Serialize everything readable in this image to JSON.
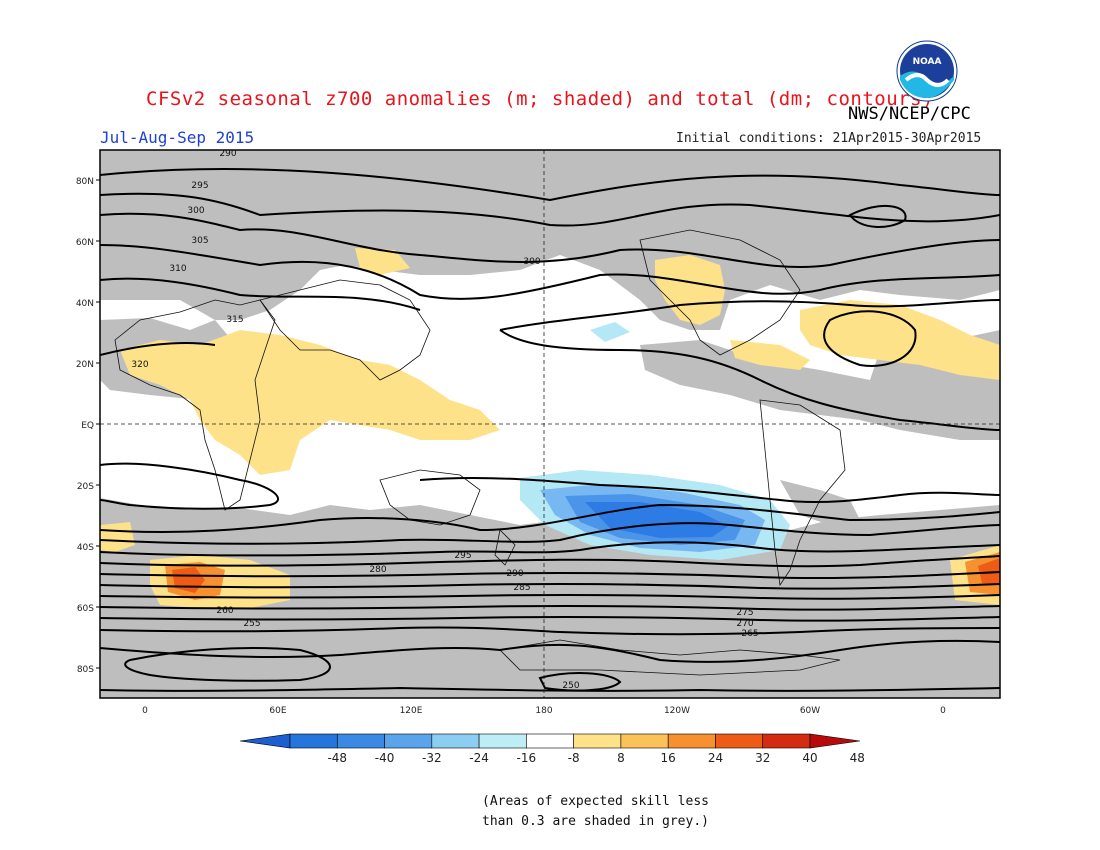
{
  "header": {
    "title": "CFSv2 seasonal z700 anomalies (m; shaded) and total (dm; contours)",
    "agency": "NWS/NCEP/CPC",
    "season": "Jul-Aug-Sep 2015",
    "initial_conditions": "Initial conditions: 21Apr2015-30Apr2015",
    "logo_text": "NOAA"
  },
  "map": {
    "lat_labels": [
      "80N",
      "60N",
      "40N",
      "20N",
      "EQ",
      "20S",
      "40S",
      "60S",
      "80S"
    ],
    "lon_labels": [
      "0",
      "60E",
      "120E",
      "180",
      "120W",
      "60W",
      "0"
    ],
    "contour_labels": [
      "290",
      "295",
      "300",
      "305",
      "310",
      "315",
      "320",
      "300",
      "295",
      "290",
      "285",
      "280",
      "275",
      "270",
      "265",
      "260",
      "255",
      "250"
    ],
    "colors": {
      "grey_skill": "#bebebe",
      "neg48": "#1e64d6",
      "neg40": "#2d7be4",
      "neg32": "#4a95ea",
      "neg24": "#78b8f2",
      "neg16": "#b4e8f4",
      "pos8": "#fde28a",
      "pos16": "#fbc25a",
      "pos24": "#f7902f",
      "pos32": "#ee5b17",
      "pos40": "#d42c10",
      "pos48": "#b70b0b"
    }
  },
  "colorbar": {
    "labels": [
      "-48",
      "-40",
      "-32",
      "-24",
      "-16",
      "-8",
      "8",
      "16",
      "24",
      "32",
      "40",
      "48"
    ],
    "colors": [
      "#1c5fd3",
      "#2575dc",
      "#3a8ae4",
      "#5aa4ec",
      "#8ccdf2",
      "#bdeef6",
      "#ffffff",
      "#fde28a",
      "#fbc25a",
      "#f7902f",
      "#ee5b17",
      "#d42c10",
      "#b70b0b"
    ]
  },
  "footnote": {
    "line1": "(Areas of expected skill less",
    "line2": "than 0.3 are shaded in grey.)"
  }
}
